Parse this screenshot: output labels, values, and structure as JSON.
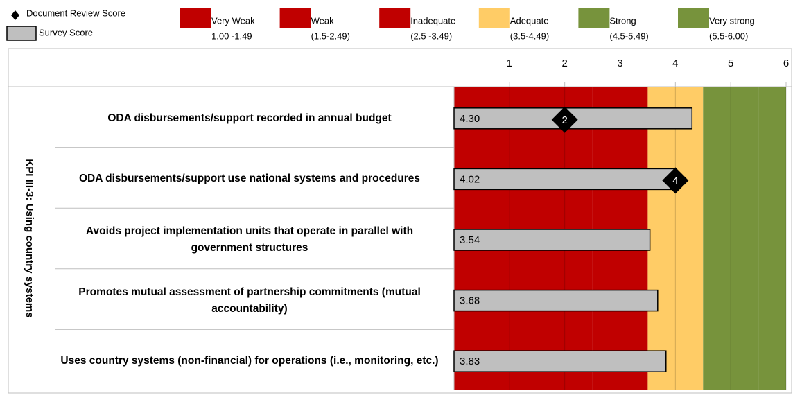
{
  "chart_data": {
    "type": "bar",
    "orientation": "horizontal",
    "group_label": "KPI III-3: Using country systems",
    "categories": [
      "ODA disbursements/support recorded in annual budget",
      "ODA disbursements/support use national systems and procedures",
      "Avoids project implementation units that operate in parallel with government structures",
      "Promotes mutual assessment of partnership commitments (mutual accountability)",
      "Uses country systems (non-financial) for operations (i.e., monitoring, etc.)"
    ],
    "series": [
      {
        "name": "Document Review Score",
        "color": "#000000",
        "marker": "diamond",
        "values": [
          2,
          4,
          null,
          null,
          null
        ]
      },
      {
        "name": "Survey Score",
        "color": "#bfbfbf",
        "marker": "bar",
        "values": [
          4.3,
          4.02,
          3.54,
          3.68,
          3.83
        ],
        "value_labels": [
          "4.30",
          "4.02",
          "3.54",
          "3.68",
          "3.83"
        ]
      }
    ],
    "bands": [
      {
        "name": "Very Weak",
        "range": "1.00 -1.49",
        "start": 1.0,
        "color": "#c00000"
      },
      {
        "name": "Weak",
        "range": "(1.5-2.49)",
        "start": 1.5,
        "color": "#c00000"
      },
      {
        "name": "Inadequate",
        "range": "(2.5 -3.49)",
        "start": 2.5,
        "color": "#c00000"
      },
      {
        "name": "Adequate",
        "range": "(3.5-4.49)",
        "start": 3.5,
        "color": "#ffcc66"
      },
      {
        "name": "Strong",
        "range": "(4.5-5.49)",
        "start": 4.5,
        "color": "#77933c"
      },
      {
        "name": "Very strong",
        "range": "(5.5-6.00)",
        "start": 5.5,
        "color": "#77933c"
      }
    ],
    "xlim": [
      0,
      6
    ],
    "xticks": [
      1,
      2,
      3,
      4,
      5,
      6
    ],
    "grid": true
  }
}
